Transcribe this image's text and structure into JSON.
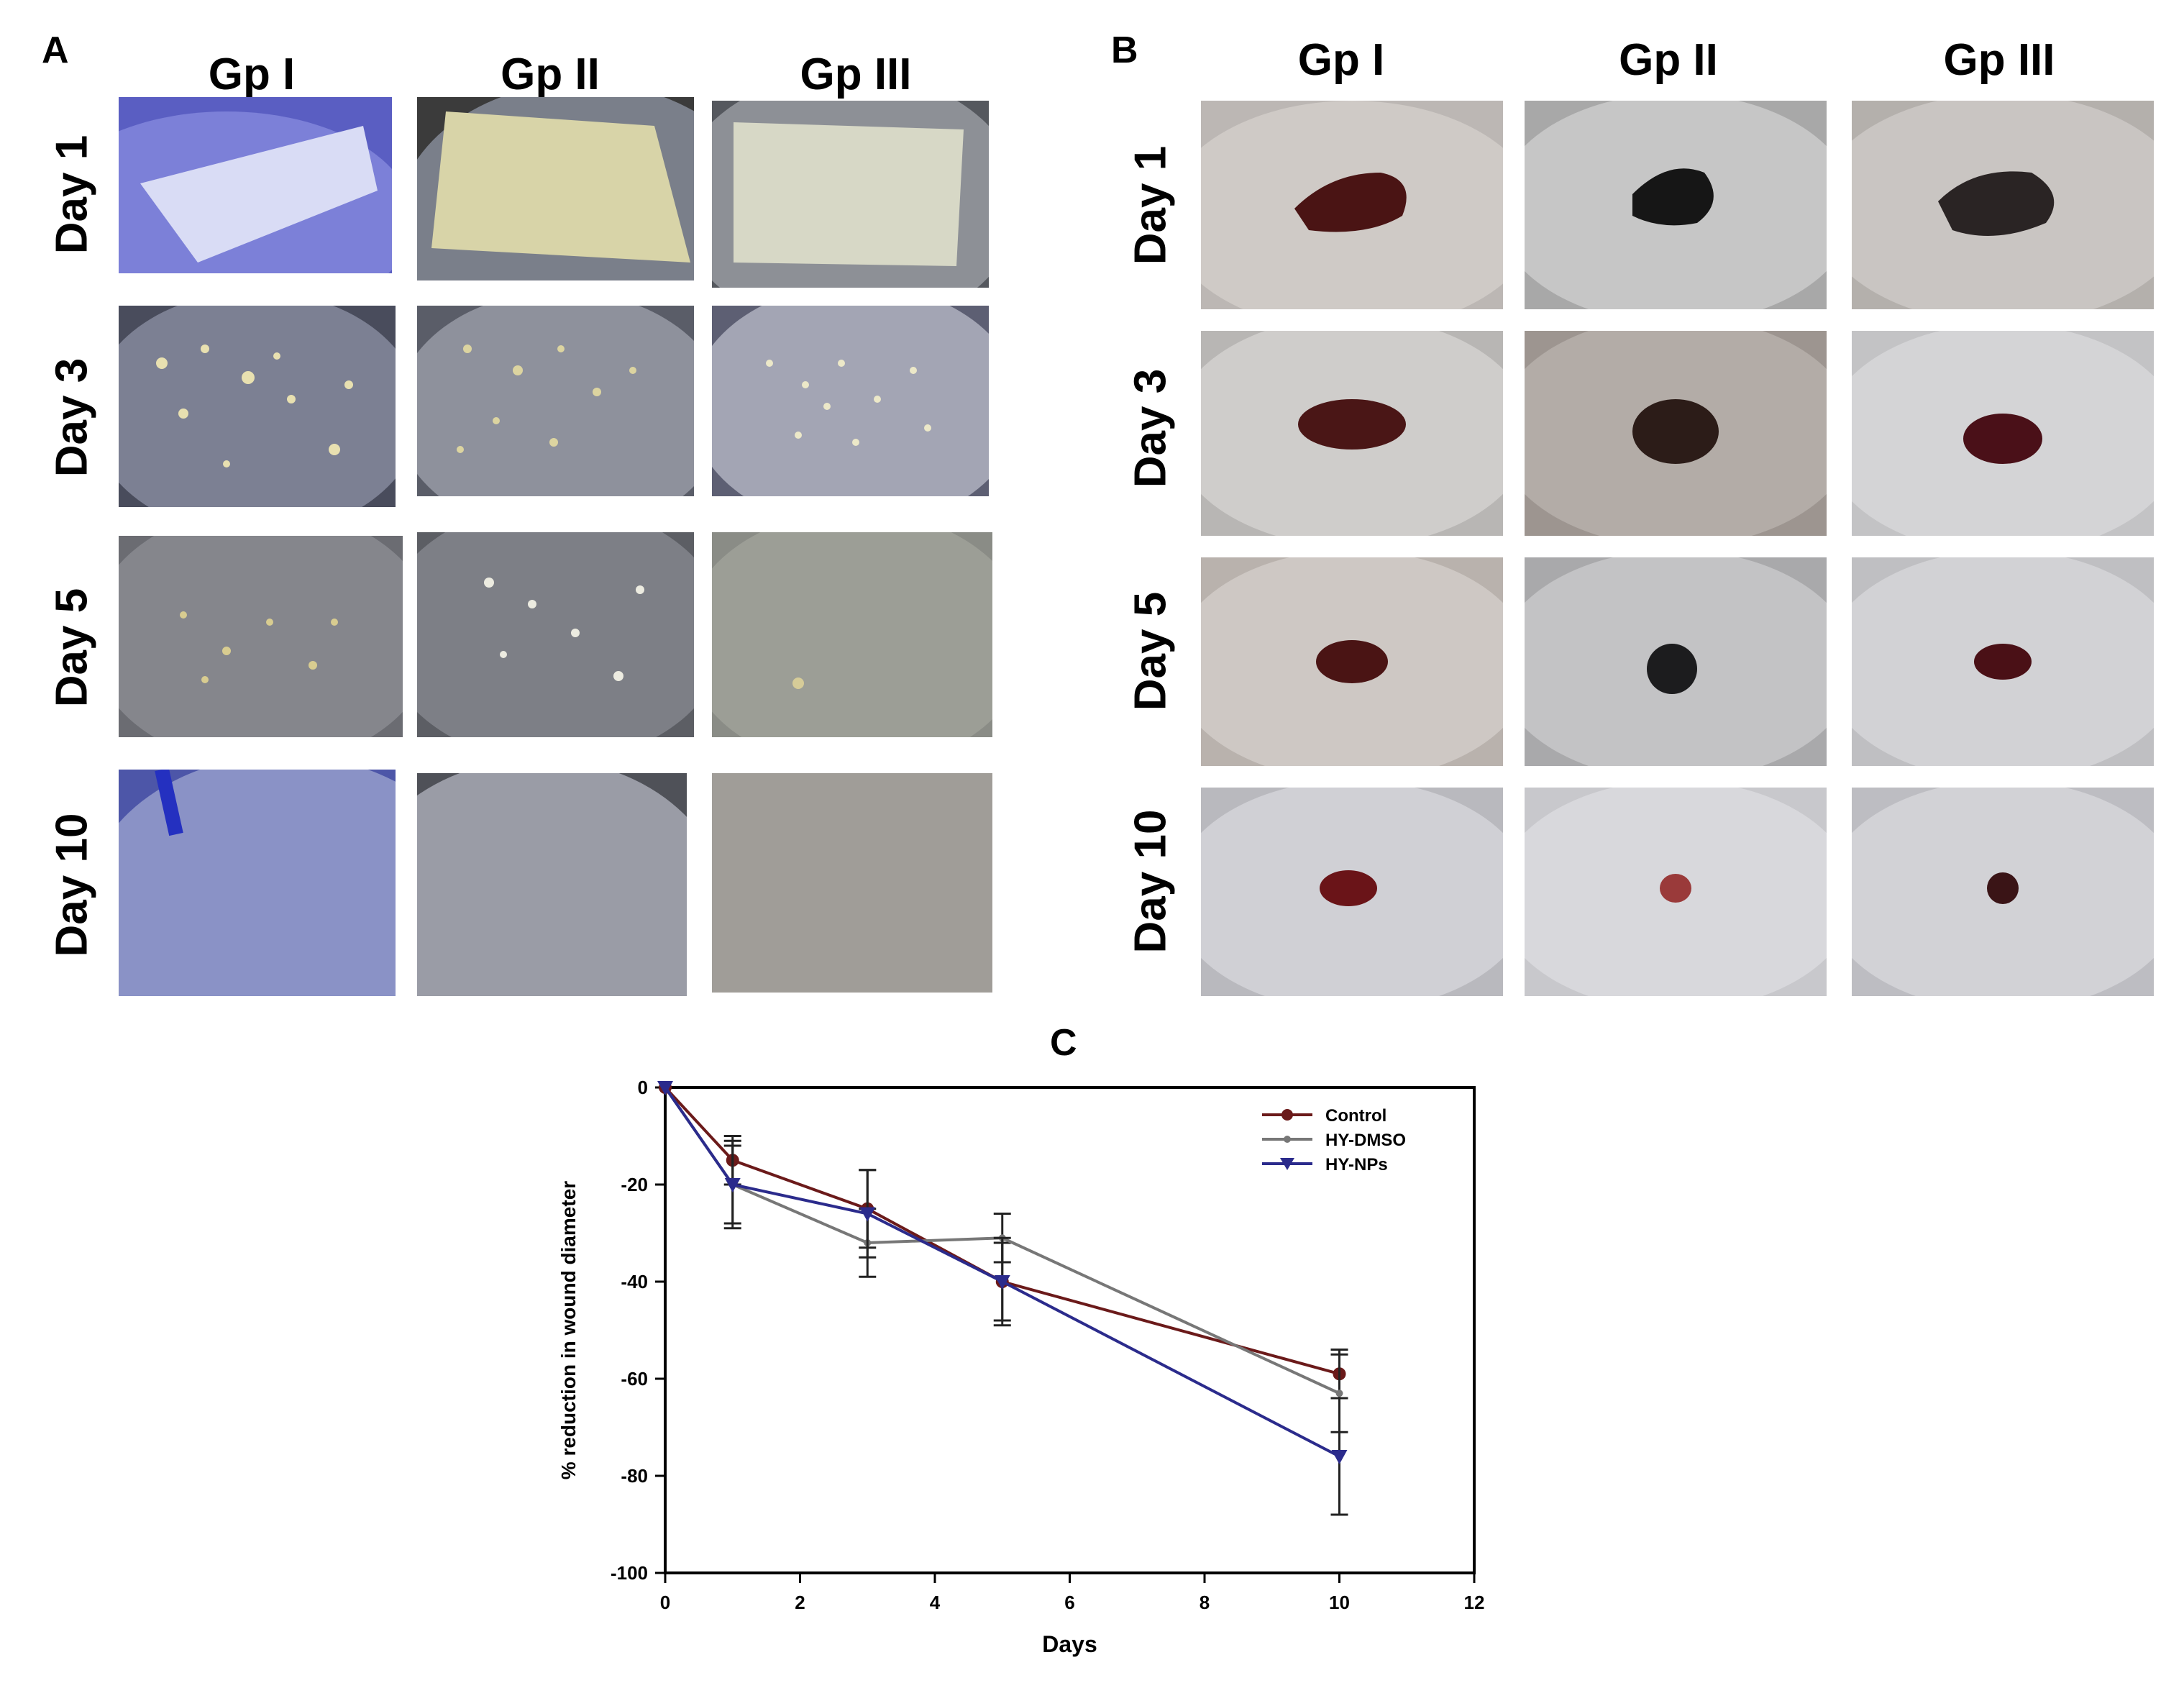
{
  "panel_a": {
    "letter": "A",
    "columns": [
      "Gp I",
      "Gp II",
      "Gp III"
    ],
    "rows": [
      "Day 1",
      "Day 3",
      "Day 5",
      "Day 10"
    ]
  },
  "panel_b": {
    "letter": "B",
    "columns": [
      "Gp I",
      "Gp II",
      "Gp III"
    ],
    "rows": [
      "Day 1",
      "Day 3",
      "Day 5",
      "Day 10"
    ]
  },
  "panel_c": {
    "letter": "C"
  },
  "chart_data": {
    "type": "line",
    "xlabel": "Days",
    "ylabel": "% reduction in wound diameter",
    "xlim": [
      0,
      12
    ],
    "ylim": [
      -100,
      0
    ],
    "xticks": [
      "0",
      "2",
      "4",
      "6",
      "8",
      "10",
      "12"
    ],
    "yticks": [
      "0",
      "-20",
      "-40",
      "-60",
      "-80",
      "-100"
    ],
    "legend_position": "top-right",
    "grid": false,
    "series": [
      {
        "name": "Control",
        "color": "#6b1a1a",
        "marker": "circle",
        "x": [
          0,
          1,
          3,
          5,
          10
        ],
        "y": [
          0,
          -15,
          -25,
          -40,
          -59
        ],
        "err": [
          0,
          5,
          8,
          8,
          5
        ]
      },
      {
        "name": "HY-DMSO",
        "color": "#777777",
        "marker": "dot",
        "x": [
          0,
          1,
          3,
          5,
          10
        ],
        "y": [
          0,
          -20,
          -32,
          -31,
          -63
        ],
        "err": [
          0,
          8,
          7,
          5,
          8
        ]
      },
      {
        "name": "HY-NPs",
        "color": "#2b2b8c",
        "marker": "triangle-down",
        "x": [
          0,
          1,
          3,
          5,
          10
        ],
        "y": [
          0,
          -20,
          -26,
          -40,
          -76
        ],
        "err": [
          0,
          9,
          9,
          9,
          12
        ]
      }
    ]
  }
}
